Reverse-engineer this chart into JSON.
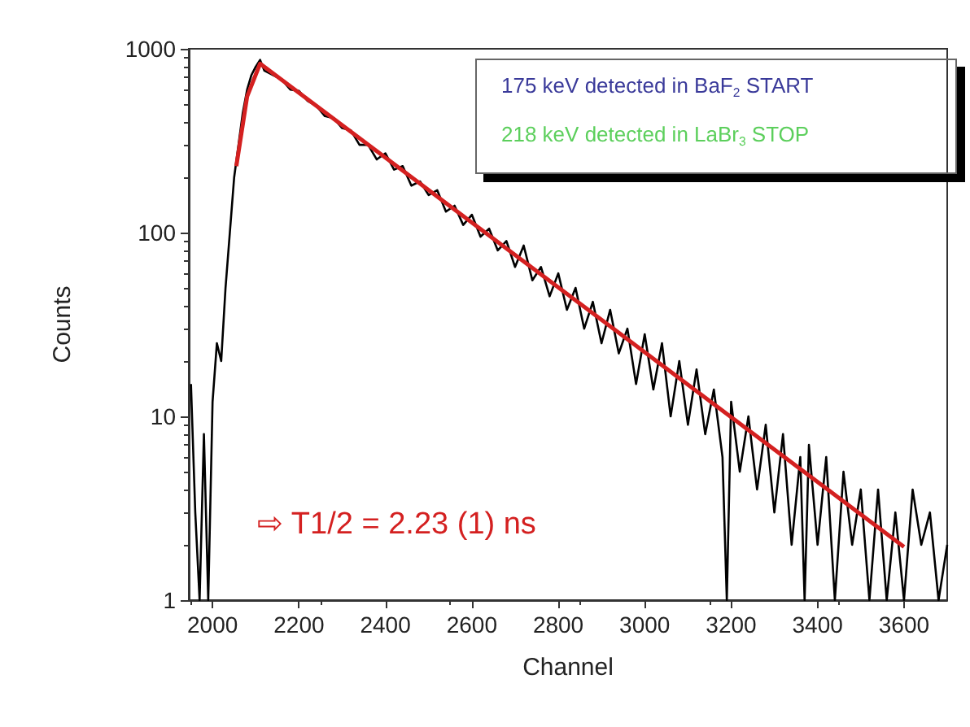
{
  "chart_data": {
    "type": "line",
    "xlabel": "Channel",
    "ylabel": "Counts",
    "log": "y",
    "grid": false,
    "marker": "none",
    "line_style": "solid",
    "xlim": [
      1945,
      3700
    ],
    "xticks": [
      2000,
      2200,
      2400,
      2600,
      2800,
      3000,
      3200,
      3400,
      3600
    ],
    "ylim": [
      1,
      1000
    ],
    "yticks": [
      1,
      10,
      100,
      1000
    ],
    "series": [
      {
        "color": "#000000",
        "x": [
          1950,
          1960,
          1970,
          1980,
          1990,
          2000,
          2010,
          2020,
          2030,
          2040,
          2050,
          2060,
          2070,
          2080,
          2090,
          2100,
          2110,
          2120,
          2140,
          2160,
          2180,
          2200,
          2220,
          2240,
          2260,
          2280,
          2300,
          2320,
          2340,
          2360,
          2380,
          2400,
          2420,
          2440,
          2460,
          2480,
          2500,
          2520,
          2540,
          2560,
          2580,
          2600,
          2620,
          2640,
          2660,
          2680,
          2700,
          2720,
          2740,
          2760,
          2780,
          2800,
          2820,
          2840,
          2860,
          2880,
          2900,
          2920,
          2940,
          2960,
          2980,
          3000,
          3020,
          3040,
          3060,
          3080,
          3100,
          3120,
          3140,
          3160,
          3180,
          3190,
          3200,
          3220,
          3240,
          3260,
          3280,
          3300,
          3320,
          3340,
          3360,
          3370,
          3380,
          3400,
          3420,
          3440,
          3460,
          3480,
          3500,
          3520,
          3540,
          3560,
          3580,
          3600,
          3620,
          3640,
          3660,
          3680,
          3700
        ],
        "values": [
          15,
          3,
          1,
          8,
          1,
          12,
          25,
          20,
          50,
          100,
          200,
          300,
          450,
          600,
          720,
          800,
          870,
          760,
          720,
          680,
          600,
          590,
          520,
          490,
          430,
          420,
          370,
          360,
          300,
          300,
          250,
          270,
          220,
          230,
          180,
          190,
          160,
          170,
          130,
          140,
          110,
          125,
          95,
          105,
          80,
          90,
          65,
          85,
          55,
          65,
          45,
          60,
          38,
          50,
          30,
          42,
          25,
          38,
          22,
          30,
          15,
          28,
          14,
          25,
          10,
          20,
          9,
          18,
          8,
          14,
          6,
          1,
          12,
          5,
          10,
          4,
          9,
          3,
          8,
          2,
          6,
          1,
          7,
          2,
          6,
          1,
          5,
          2,
          4,
          1,
          4,
          1,
          3,
          1,
          4,
          2,
          3,
          1,
          2
        ]
      },
      {
        "color": "#d42020",
        "x": [
          2055,
          2080,
          2110,
          3600
        ],
        "values": [
          230,
          550,
          830,
          1.95
        ]
      }
    ],
    "annotations": [
      "175 keV detected in BaF$_{2}$ START",
      "218 keV detected in LaBr$_{3}$ STOP",
      "⇨ T1/2 = 2.23 (1) ns"
    ]
  }
}
